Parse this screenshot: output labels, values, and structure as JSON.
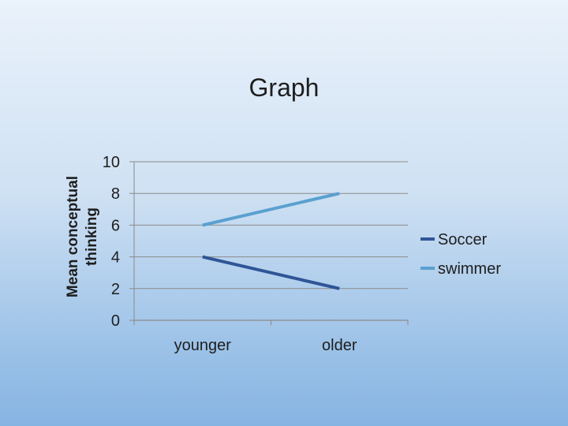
{
  "chart_data": {
    "type": "line",
    "title": "Graph",
    "ylabel": [
      "Mean conceptual",
      "thinking"
    ],
    "xlabel": "",
    "categories": [
      "younger",
      "older"
    ],
    "ylim": [
      0,
      10
    ],
    "yticks": [
      0,
      2,
      4,
      6,
      8,
      10
    ],
    "grid": true,
    "legend_position": "right",
    "series": [
      {
        "name": "Soccer",
        "values": [
          4,
          2
        ],
        "color": "#2f5597"
      },
      {
        "name": "swimmer",
        "values": [
          6,
          8
        ],
        "color": "#5aa0d0"
      }
    ]
  }
}
